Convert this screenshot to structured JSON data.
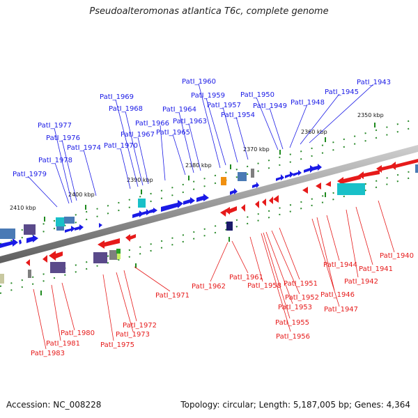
{
  "title": "Pseudoalteromonas atlantica T6c, complete genome",
  "footer": {
    "accession": "Accession: NC_008228",
    "stats": "Topology: circular; Length: 5,187,005 bp; Genes: 4,364"
  },
  "colors": {
    "forward": "#1a1ae6",
    "reverse": "#e61a1a",
    "backbone": "#8a8a8a",
    "ticks": "#1e8a1e"
  },
  "scale_labels": [
    "2350 kbp",
    "2360 kbp",
    "2370 kbp",
    "2380 kbp",
    "2390 kbp",
    "2400 kbp",
    "2410 kbp"
  ],
  "forward_labels": [
    "PatI_1943",
    "PatI_1945",
    "PatI_1948",
    "PatI_1949",
    "PatI_1950",
    "PatI_1954",
    "PatI_1957",
    "PatI_1959",
    "PatI_1960",
    "PatI_1963",
    "PatI_1964",
    "PatI_1965",
    "PatI_1966",
    "PatI_1967",
    "PatI_1968",
    "PatI_1969",
    "PatI_1970",
    "PatI_1974",
    "PatI_1976",
    "PatI_1977",
    "PatI_1978",
    "PatI_1979"
  ],
  "reverse_labels": [
    "PatI_1940",
    "PatI_1941",
    "PatI_1942",
    "PatI_1944",
    "PatI_1946",
    "PatI_1947",
    "PatI_1951",
    "PatI_1952",
    "PatI_1953",
    "PatI_1955",
    "PatI_1956",
    "PatI_1958",
    "PatI_1961",
    "PatI_1962",
    "PatI_1971",
    "PatI_1972",
    "PatI_1973",
    "PatI_1975",
    "PatI_1980",
    "PatI_1981",
    "PatI_1983"
  ]
}
